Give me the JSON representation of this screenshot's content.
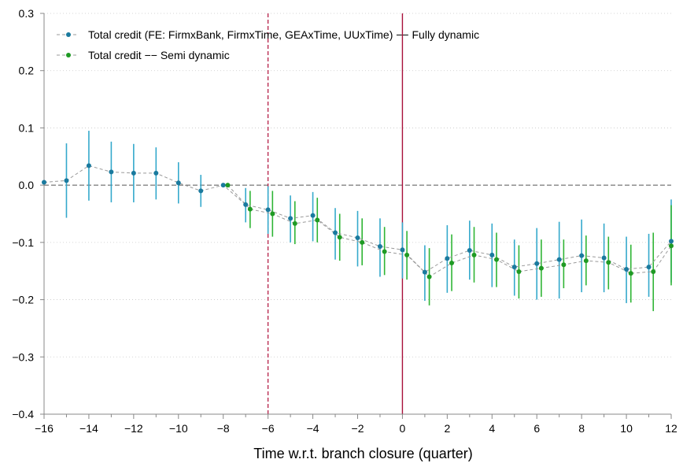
{
  "chart_data": {
    "type": "scatter",
    "title": "",
    "xlabel": "Time w.r.t. branch closure (quarter)",
    "ylabel": "",
    "xlim": [
      -16,
      12
    ],
    "ylim": [
      -0.4,
      0.3
    ],
    "xticks": [
      -16,
      -14,
      -12,
      -10,
      -8,
      -6,
      -4,
      -2,
      0,
      2,
      4,
      6,
      8,
      10,
      12
    ],
    "xtick_labels": [
      "−16",
      "−14",
      "−12",
      "−10",
      "−8",
      "−6",
      "−4",
      "−2",
      "0",
      "2",
      "4",
      "6",
      "8",
      "10",
      "12"
    ],
    "yticks": [
      -0.4,
      -0.3,
      -0.2,
      -0.1,
      0.0,
      0.1,
      0.2,
      0.3
    ],
    "ytick_labels": [
      "−0.4",
      "−0.3",
      "−0.2",
      "−0.1",
      "0.0",
      "0.1",
      "0.2",
      "0.3"
    ],
    "grid": "horizontal dotted",
    "legend_position": "top-left",
    "reference_lines": {
      "zero_line_y": 0,
      "dashed_vertical_x": -6,
      "solid_vertical_x": 0
    },
    "series": [
      {
        "name": "Total credit (FE: FirmxBank, FirmxTime, GEAxTime, UUxTime) −− Fully dynamic",
        "color": "#1a7a9e",
        "ci_color": "#35a9cc",
        "x": [
          -16,
          -15,
          -14,
          -13,
          -12,
          -11,
          -10,
          -9,
          -8,
          -7,
          -6,
          -5,
          -4,
          -3,
          -2,
          -1,
          0,
          1,
          2,
          3,
          4,
          5,
          6,
          7,
          8,
          9,
          10,
          11,
          12
        ],
        "y": [
          0.005,
          0.008,
          0.034,
          0.023,
          0.021,
          0.021,
          0.004,
          -0.01,
          0.0,
          -0.034,
          -0.043,
          -0.058,
          -0.053,
          -0.083,
          -0.092,
          -0.107,
          -0.113,
          -0.152,
          -0.128,
          -0.114,
          -0.122,
          -0.143,
          -0.137,
          -0.13,
          -0.123,
          -0.127,
          -0.147,
          -0.143,
          -0.098
        ],
        "ci_low": [
          null,
          -0.057,
          -0.027,
          -0.03,
          -0.03,
          -0.025,
          -0.032,
          -0.038,
          null,
          -0.065,
          -0.085,
          -0.1,
          -0.098,
          -0.13,
          -0.142,
          -0.16,
          -0.163,
          -0.202,
          -0.188,
          -0.165,
          -0.178,
          -0.193,
          -0.2,
          -0.198,
          -0.187,
          -0.187,
          -0.206,
          -0.195,
          -0.17
        ],
        "ci_high": [
          null,
          0.073,
          0.095,
          0.076,
          0.072,
          0.066,
          0.04,
          0.018,
          null,
          -0.005,
          -0.002,
          -0.018,
          -0.012,
          -0.04,
          -0.045,
          -0.058,
          -0.065,
          -0.105,
          -0.07,
          -0.062,
          -0.067,
          -0.095,
          -0.075,
          -0.064,
          -0.06,
          -0.067,
          -0.09,
          -0.085,
          -0.025
        ]
      },
      {
        "name": "Total credit −− Semi dynamic",
        "color": "#1f9a24",
        "ci_color": "#2fb535",
        "x": [
          -7.8,
          -6.8,
          -5.8,
          -4.8,
          -3.8,
          -2.8,
          -1.8,
          -0.8,
          0.2,
          1.2,
          2.2,
          3.2,
          4.2,
          5.2,
          6.2,
          7.2,
          8.2,
          9.2,
          10.2,
          11.2,
          12.2
        ],
        "y": [
          0.0,
          -0.042,
          -0.05,
          -0.067,
          -0.061,
          -0.091,
          -0.1,
          -0.116,
          -0.122,
          -0.16,
          -0.136,
          -0.122,
          -0.13,
          -0.151,
          -0.145,
          -0.139,
          -0.132,
          -0.135,
          -0.154,
          -0.151,
          -0.106
        ],
        "ci_low": [
          null,
          -0.075,
          -0.09,
          -0.103,
          -0.1,
          -0.132,
          -0.14,
          -0.157,
          -0.165,
          -0.21,
          -0.185,
          -0.17,
          -0.178,
          -0.198,
          -0.195,
          -0.18,
          -0.175,
          -0.182,
          -0.205,
          -0.22,
          -0.175
        ],
        "ci_high": [
          null,
          -0.01,
          -0.01,
          -0.028,
          -0.022,
          -0.05,
          -0.058,
          -0.073,
          -0.08,
          -0.11,
          -0.086,
          -0.073,
          -0.083,
          -0.105,
          -0.095,
          -0.095,
          -0.088,
          -0.09,
          -0.104,
          -0.083,
          -0.035
        ]
      }
    ]
  }
}
